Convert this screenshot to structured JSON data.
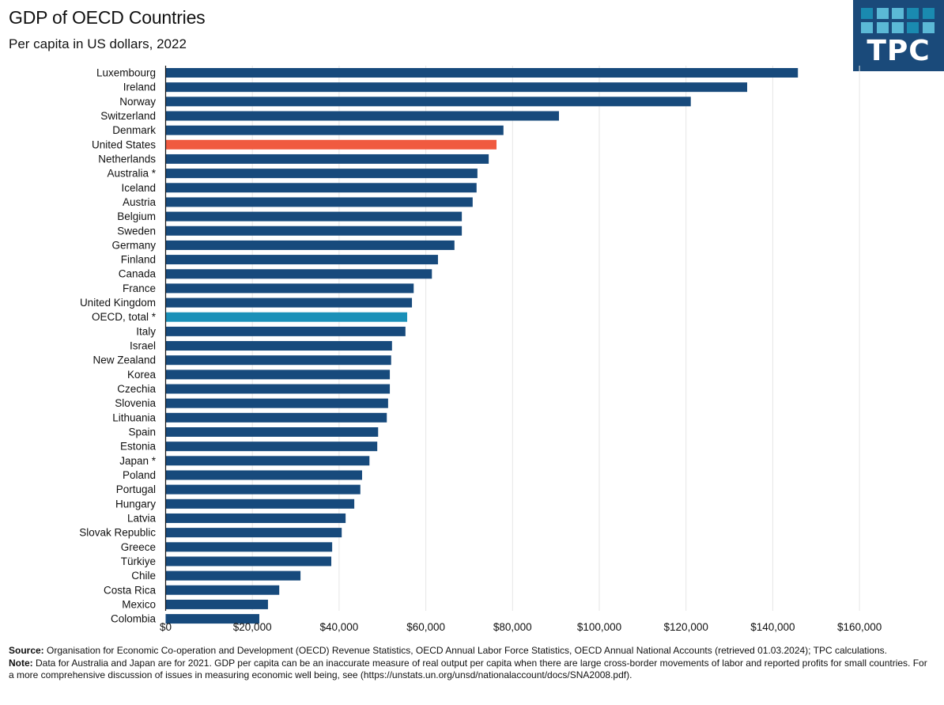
{
  "header": {
    "title": "GDP of OECD Countries",
    "subtitle": "Per capita in US dollars, 2022"
  },
  "logo": {
    "text": "TPC",
    "squares_row1": [
      "#1a8ab0",
      "#5bb9d6",
      "#5bb9d6",
      "#1a8ab0",
      "#1a8ab0"
    ],
    "squares_row2": [
      "#5bb9d6",
      "#5bb9d6",
      "#5bb9d6",
      "#1a8ab0",
      "#5bb9d6"
    ],
    "background": "#1a4a7a"
  },
  "colors": {
    "default_bar": "#174a7c",
    "highlight_us": "#f05a40",
    "highlight_oecd": "#1a90b8",
    "grid": "#e6e6e6",
    "axis": "#111111"
  },
  "chart_data": {
    "type": "bar",
    "orientation": "horizontal",
    "title": "GDP of OECD Countries",
    "subtitle": "Per capita in US dollars, 2022",
    "xlabel": "",
    "ylabel": "",
    "xlim": [
      0,
      160000
    ],
    "x_ticks": [
      0,
      20000,
      40000,
      60000,
      80000,
      100000,
      120000,
      140000,
      160000
    ],
    "x_tick_labels": [
      "$0",
      "$20,000",
      "$40,000",
      "$60,000",
      "$80,000",
      "$100,000",
      "$120,000",
      "$140,000",
      "$160,000"
    ],
    "grid": "vertical",
    "legend": "none",
    "categories": [
      "Luxembourg",
      "Ireland",
      "Norway",
      "Switzerland",
      "Denmark",
      "United States",
      "Netherlands",
      "Australia *",
      "Iceland",
      "Austria",
      "Belgium",
      "Sweden",
      "Germany",
      "Finland",
      "Canada",
      "France",
      "United Kingdom",
      "OECD, total *",
      "Italy",
      "Israel",
      "New Zealand",
      "Korea",
      "Czechia",
      "Slovenia",
      "Lithuania",
      "Spain",
      "Estonia",
      "Japan *",
      "Poland",
      "Portugal",
      "Hungary",
      "Latvia",
      "Slovak Republic",
      "Greece",
      "Türkiye",
      "Chile",
      "Costa Rica",
      "Mexico",
      "Colombia"
    ],
    "values": [
      145800,
      134100,
      121100,
      90700,
      77900,
      76300,
      74500,
      71900,
      71700,
      70800,
      68300,
      68300,
      66600,
      62800,
      61400,
      57200,
      56800,
      55700,
      55300,
      52200,
      52000,
      51700,
      51700,
      51300,
      51000,
      49000,
      48800,
      47000,
      45300,
      44900,
      43500,
      41500,
      40600,
      38400,
      38200,
      31100,
      26200,
      23600,
      21600
    ],
    "highlights": {
      "United States": "highlight_us",
      "OECD, total *": "highlight_oecd"
    }
  },
  "footer": {
    "source_label": "Source:",
    "source_text": " Organisation for Economic Co-operation and Development (OECD) Revenue Statistics, OECD Annual Labor Force Statistics, OECD Annual National Accounts (retrieved 01.03.2024); TPC calculations.",
    "note_label": "Note:",
    "note_text": " Data for Australia and Japan are for 2021. GDP per capita can be an inaccurate measure of real output per capita when there are large cross-border movements of labor and reported profits for small countries.  For a more comprehensive discussion of issues in measuring economic well being, see (https://unstats.un.org/unsd/nationalaccount/docs/SNA2008.pdf)."
  }
}
